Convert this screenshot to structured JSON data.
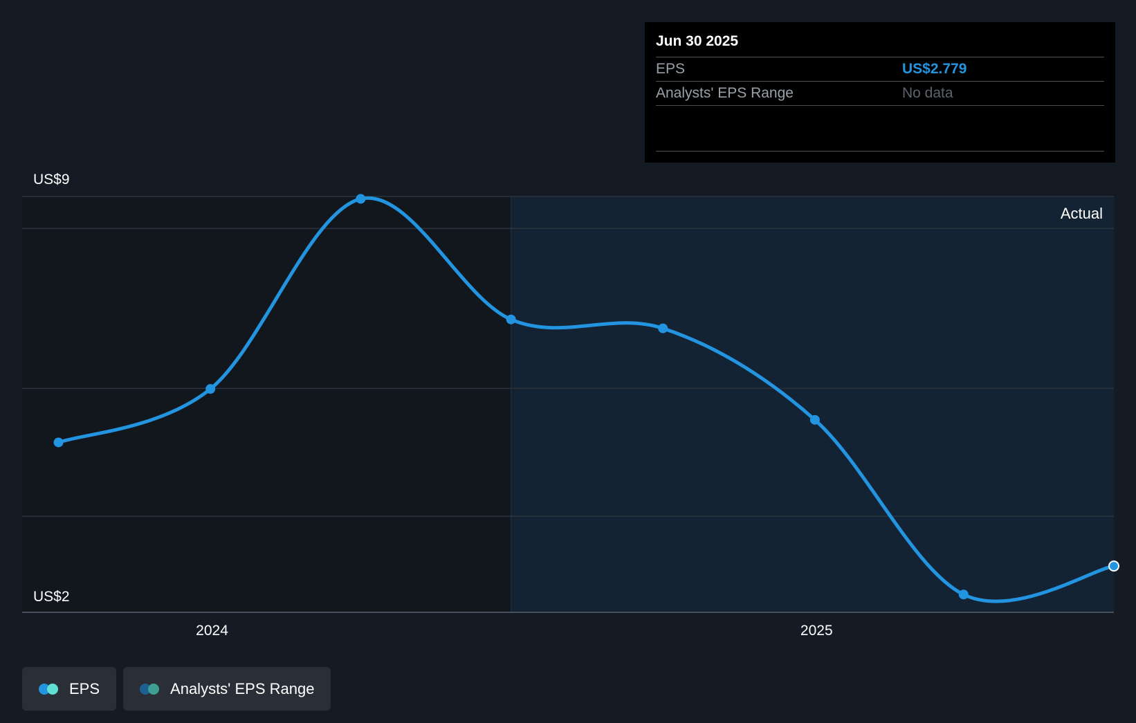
{
  "tooltip": {
    "date": "Jun 30 2025",
    "rows": [
      {
        "label": "EPS",
        "value": "US$2.779"
      },
      {
        "label": "Analysts' EPS Range",
        "value": "No data"
      }
    ]
  },
  "legend": [
    {
      "label": "EPS",
      "colors": [
        "#2394df",
        "#5fe0d2"
      ]
    },
    {
      "label": "Analysts' EPS Range",
      "colors": [
        "#1d5f8e",
        "#3f9e93"
      ]
    }
  ],
  "colors": {
    "background": "#151b24",
    "past_region": "#12171e",
    "actual_region": "#132333",
    "line": "#2394df",
    "gridline": "#2c333d"
  },
  "chart_data": {
    "type": "line",
    "title": "",
    "xlabel": "",
    "ylabel": "",
    "y_tick_labels": [
      {
        "value": 9,
        "label": "US$9"
      },
      {
        "value": 2,
        "label": "US$2"
      }
    ],
    "ylim": [
      2,
      9
    ],
    "x_ticks": [
      {
        "date": "2024-01-01",
        "label": "2024"
      },
      {
        "date": "2025-01-01",
        "label": "2025"
      }
    ],
    "xlim": [
      "2023-09-08",
      "2025-06-30"
    ],
    "region_label": "Actual",
    "region_start": "2024-06-30",
    "series": [
      {
        "name": "EPS",
        "points": [
          {
            "x": "2023-09-30",
            "y": 4.86
          },
          {
            "x": "2023-12-31",
            "y": 5.76
          },
          {
            "x": "2024-03-31",
            "y": 8.96
          },
          {
            "x": "2024-06-30",
            "y": 6.93
          },
          {
            "x": "2024-09-30",
            "y": 6.78
          },
          {
            "x": "2024-12-31",
            "y": 5.24
          },
          {
            "x": "2025-03-31",
            "y": 2.3
          },
          {
            "x": "2025-06-30",
            "y": 2.779
          }
        ]
      }
    ],
    "grid": true,
    "legend_position": "bottom-left"
  }
}
